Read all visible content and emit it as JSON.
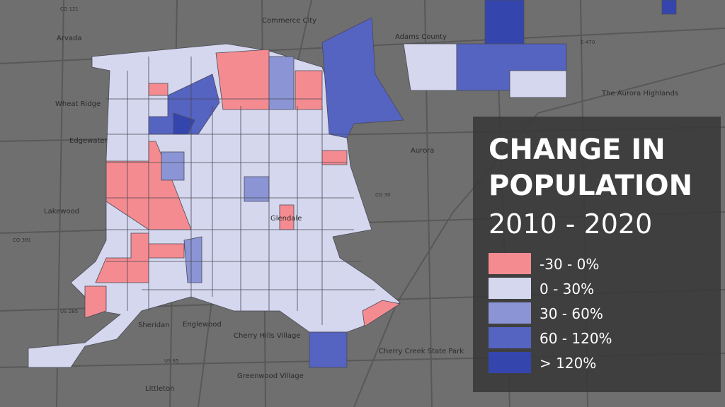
{
  "title": {
    "line1": "CHANGE IN",
    "line2": "POPULATION",
    "line3": "2010 - 2020"
  },
  "legend": [
    {
      "label": "-30 - 0%",
      "color": "#f48b90"
    },
    {
      "label": "0 - 30%",
      "color": "#d4d7ee"
    },
    {
      "label": "30 - 60%",
      "color": "#8b94d4"
    },
    {
      "label": "60 - 120%",
      "color": "#5563c1"
    },
    {
      "label": "> 120%",
      "color": "#3446ae"
    }
  ],
  "places": [
    "Arvada",
    "Commerce City",
    "Wheat Ridge",
    "Edgewater",
    "Lakewood",
    "Aurora",
    "Sheridan",
    "Englewood",
    "Cherry Hills Village",
    "Greenwood Village",
    "Littleton",
    "The Aurora Highlands",
    "Cherry Creek State Park",
    "Glendale",
    "Adams County"
  ],
  "roads": [
    "CO 121",
    "E-470",
    "US 285",
    "CO 30",
    "CO 391",
    "US 85"
  ]
}
